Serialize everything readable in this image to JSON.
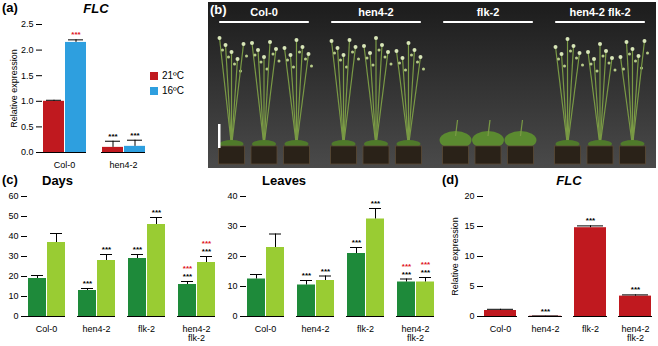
{
  "chart_data": [
    {
      "panel": "(a)",
      "type": "bar",
      "title": "FLC",
      "y_label": "Relative expression",
      "categories": [
        "Col-0",
        "hen4-2"
      ],
      "series": [
        {
          "name": "21ºC",
          "color": "#c0191f",
          "values": [
            1.0,
            0.1
          ],
          "errors": [
            0.02,
            0.12
          ],
          "stars": [
            [],
            [
              {
                "text": "***",
                "color": "#000000"
              }
            ]
          ]
        },
        {
          "name": "16ºC",
          "color": "#2e9fdf",
          "values": [
            2.15,
            0.12
          ],
          "errors": [
            0.05,
            0.12
          ],
          "stars": [
            [
              {
                "text": "***",
                "color": "#e0141e"
              }
            ],
            [
              {
                "text": "***",
                "color": "#000000"
              }
            ]
          ]
        }
      ],
      "ylim": [
        0,
        2.5
      ],
      "yticks": [
        {
          "value": 0,
          "label": "0.0"
        },
        {
          "value": 0.5,
          "label": "0.5"
        },
        {
          "value": 1,
          "label": "1.0"
        },
        {
          "value": 1.5,
          "label": "1.5"
        },
        {
          "value": 2,
          "label": "2.0"
        },
        {
          "value": 2.5,
          "label": "2.5"
        }
      ],
      "grid": false,
      "legend": "right"
    },
    {
      "panel": "(b)",
      "type": "image",
      "labels": [
        "Col-0",
        "hen4-2",
        "flk-2",
        "hen4-2 flk-2"
      ]
    },
    {
      "panel": "(c)",
      "type": "bar",
      "title": "Days",
      "categories": [
        "Col-0",
        "hen4-2",
        "flk-2",
        "hen4-2 flk-2"
      ],
      "series": [
        {
          "name": "21ºC",
          "color": "#1e8a3a",
          "values": [
            19,
            13,
            29,
            16
          ],
          "errors": [
            1.5,
            1,
            2,
            1.5
          ],
          "stars": [
            [],
            [
              {
                "text": "***",
                "color": "#000000"
              }
            ],
            [
              {
                "text": "***",
                "color": "#000000"
              }
            ],
            [
              {
                "text": "***",
                "color": "#000000"
              },
              {
                "text": "***",
                "color": "#e0141e"
              }
            ]
          ]
        },
        {
          "name": "16ºC",
          "color": "#99cc33",
          "values": [
            37,
            28,
            46,
            27
          ],
          "errors": [
            4.5,
            3,
            3.5,
            3
          ],
          "stars": [
            [],
            [
              {
                "text": "***",
                "color": "#000000"
              }
            ],
            [
              {
                "text": "***",
                "color": "#000000"
              }
            ],
            [
              {
                "text": "***",
                "color": "#000000"
              },
              {
                "text": "***",
                "color": "#e0141e"
              }
            ]
          ]
        }
      ],
      "ylim": [
        0,
        60
      ],
      "yticks": [
        0,
        10,
        20,
        30,
        40,
        50,
        60
      ],
      "grid": false
    },
    {
      "type": "bar",
      "title": "Leaves",
      "categories": [
        "Col-0",
        "hen4-2",
        "flk-2",
        "hen4-2 flk-2"
      ],
      "series": [
        {
          "name": "21ºC",
          "color": "#1e8a3a",
          "values": [
            12.5,
            10.5,
            21,
            11.5
          ],
          "errors": [
            1.5,
            1.5,
            2,
            1
          ],
          "stars": [
            [],
            [
              {
                "text": "***",
                "color": "#000000"
              }
            ],
            [
              {
                "text": "***",
                "color": "#000000"
              }
            ],
            [
              {
                "text": "***",
                "color": "#000000"
              },
              {
                "text": "***",
                "color": "#e0141e"
              }
            ]
          ]
        },
        {
          "name": "16ºC",
          "color": "#99cc33",
          "values": [
            23,
            12,
            32.5,
            11.5
          ],
          "errors": [
            4.5,
            1.5,
            3.5,
            1.5
          ],
          "stars": [
            [],
            [
              {
                "text": "***",
                "color": "#000000"
              }
            ],
            [
              {
                "text": "***",
                "color": "#000000"
              }
            ],
            [
              {
                "text": "***",
                "color": "#000000"
              },
              {
                "text": "***",
                "color": "#e0141e"
              }
            ]
          ]
        }
      ],
      "ylim": [
        0,
        40
      ],
      "yticks": [
        0,
        10,
        20,
        30,
        40
      ],
      "grid": false
    },
    {
      "panel": "(d)",
      "type": "bar",
      "title": "FLC",
      "y_label": "Relative expression",
      "categories": [
        "Col-0",
        "hen4-2",
        "flk-2",
        "hen4-2 flk-2"
      ],
      "color": "#c0191f",
      "values": [
        1,
        0.05,
        14.8,
        3.4
      ],
      "errors": [
        0.2,
        0.03,
        0.3,
        0.2
      ],
      "stars": [
        [],
        [
          {
            "text": "***",
            "color": "#000000"
          }
        ],
        [
          {
            "text": "***",
            "color": "#000000"
          }
        ],
        [
          {
            "text": "***",
            "color": "#000000"
          }
        ]
      ],
      "ylim": [
        0,
        20
      ],
      "yticks": [
        0,
        5,
        10,
        15,
        20
      ],
      "grid": false
    }
  ]
}
